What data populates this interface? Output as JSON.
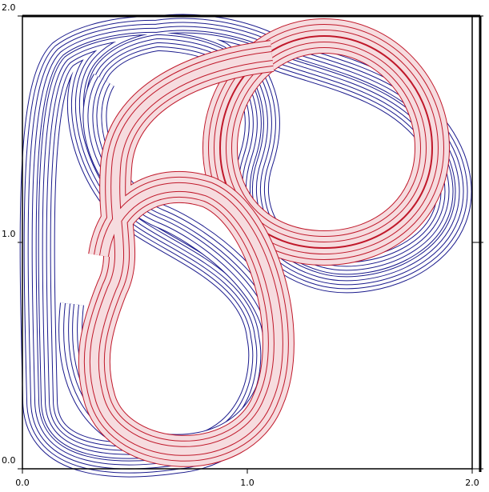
{
  "chart_data": {
    "type": "mesh",
    "xlim": [
      0,
      2
    ],
    "ylim": [
      0,
      2
    ],
    "xticks": [
      {
        "value": 0,
        "label": "0.0"
      },
      {
        "value": 1,
        "label": "1.0"
      },
      {
        "value": 2,
        "label": "2.0"
      }
    ],
    "yticks": [
      {
        "value": 0,
        "label": "0.0"
      },
      {
        "value": 1,
        "label": "1.0"
      },
      {
        "value": 2,
        "label": "2.0"
      }
    ]
  }
}
